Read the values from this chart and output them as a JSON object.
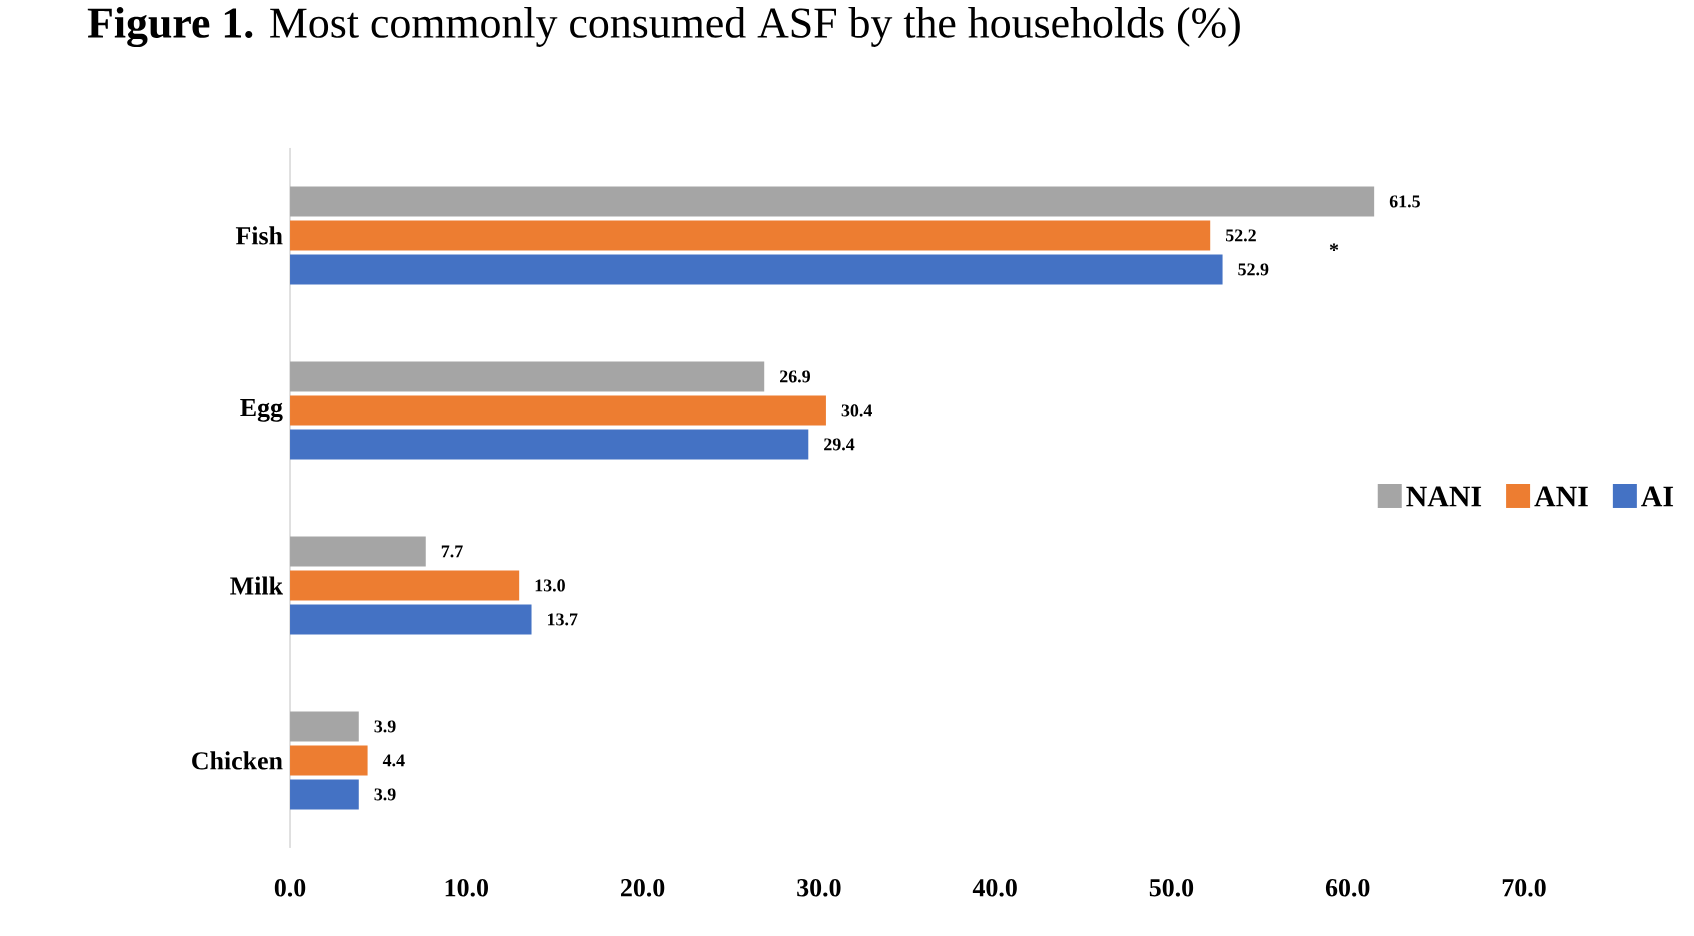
{
  "chart_data": {
    "type": "bar",
    "orientation": "horizontal",
    "title": "**Figure 1.** Most commonly consumed ASF by the households (%)",
    "categories": [
      "Fish",
      "Egg",
      "Milk",
      "Chicken"
    ],
    "series": [
      {
        "name": "NANI",
        "color": "#a5a5a5",
        "values": [
          61.5,
          26.9,
          7.7,
          3.9
        ],
        "value_labels": [
          "61.5",
          "26.9",
          "7.7",
          "3.9"
        ]
      },
      {
        "name": "ANI",
        "color": "#ed7d31",
        "values": [
          52.2,
          30.4,
          13.0,
          4.4
        ],
        "value_labels": [
          "52.2",
          "30.4",
          "13.0",
          "4.4"
        ]
      },
      {
        "name": "AI",
        "color": "#4472c4",
        "values": [
          52.9,
          29.4,
          13.7,
          3.9
        ],
        "value_labels": [
          "52.9",
          "29.4",
          "13.7",
          "3.9"
        ]
      }
    ],
    "xlim": [
      0,
      70
    ],
    "xticks": [
      {
        "value": 0,
        "label": "0.0"
      },
      {
        "value": 10,
        "label": "10.0"
      },
      {
        "value": 20,
        "label": "20.0"
      },
      {
        "value": 30,
        "label": "30.0"
      },
      {
        "value": 40,
        "label": "40.0"
      },
      {
        "value": 50,
        "label": "50.0"
      },
      {
        "value": 60,
        "label": "60.0"
      },
      {
        "value": 70,
        "label": "70.0"
      }
    ],
    "legend": "right",
    "grid": false,
    "annotations": [
      "*"
    ]
  }
}
